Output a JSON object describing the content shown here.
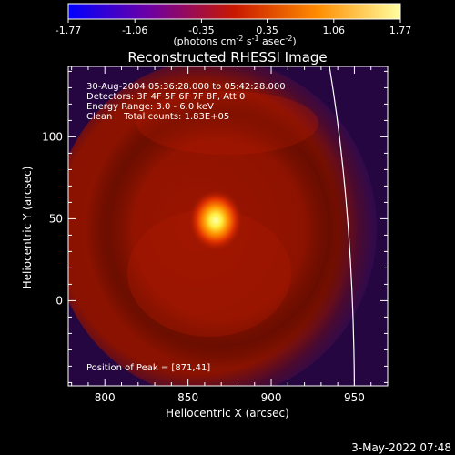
{
  "chart_data": {
    "type": "heatmap",
    "title": "Reconstructed RHESSI Image",
    "colorbar": {
      "ticks": [
        "-1.77",
        "-1.06",
        "-0.35",
        "0.35",
        "1.06",
        "1.77"
      ],
      "range": [
        -1.77,
        1.77
      ],
      "unit_parts": {
        "pre": "(photons cm",
        "e1": "-2",
        "mid1": " s",
        "e2": "-1",
        "mid2": " asec",
        "e3": "-2",
        "post": ")"
      }
    },
    "annotations": [
      "30-Aug-2004 05:36:28.000 to 05:42:28.000",
      "Detectors: 3F 4F 5F 6F 7F 8F, Att 0",
      "Energy Range: 3.0 - 6.0 keV",
      "Clean    Total counts: 1.83E+05"
    ],
    "peak_label": "Position of Peak = [871,41]",
    "peak": {
      "x": 871,
      "y": 41
    },
    "xlabel": "Heliocentric X (arcsec)",
    "ylabel": "Heliocentric Y (arcsec)",
    "xlim": [
      778,
      970
    ],
    "ylim": [
      -52,
      143
    ],
    "x_ticks": [
      800,
      850,
      900,
      950
    ],
    "y_ticks": [
      0,
      50,
      100
    ],
    "x_minor_step": 10,
    "y_minor_step": 10,
    "limb_x_start": 935,
    "limb_x_end": 950
  },
  "footer": {
    "date": "3-May-2022 07:48"
  }
}
